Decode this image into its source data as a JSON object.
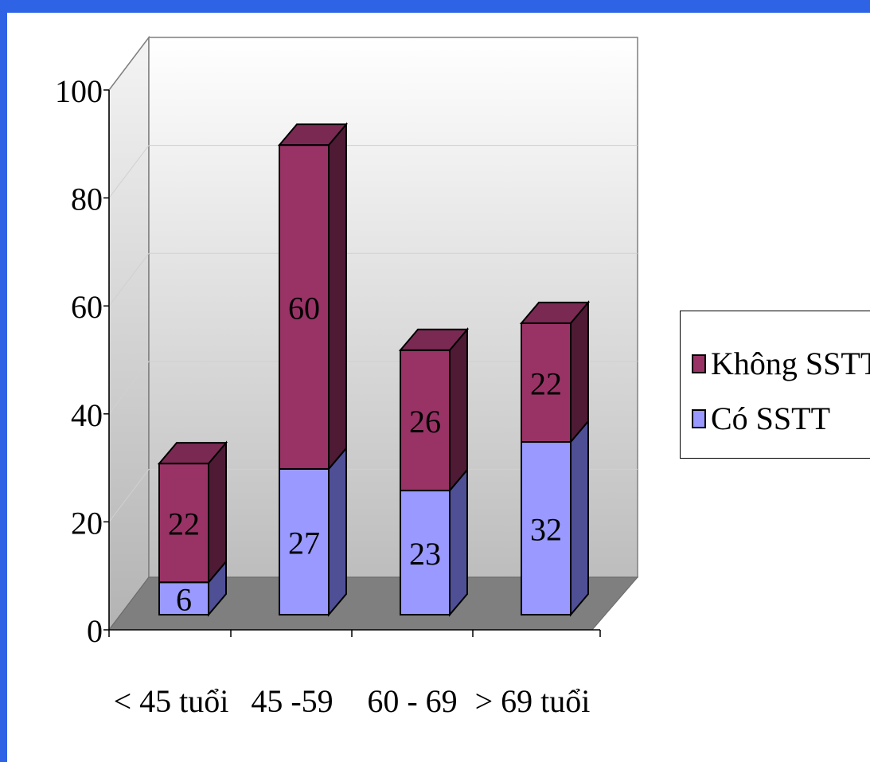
{
  "chart_data": {
    "type": "bar",
    "stacked": true,
    "three_d": true,
    "categories": [
      "< 45 tuổi",
      "45 -59",
      "60 - 69",
      "> 69 tuổi"
    ],
    "series": [
      {
        "name": "Có SSTT",
        "values": [
          6,
          27,
          23,
          32
        ],
        "color": "#9999ff",
        "side_color": "#4f4f96"
      },
      {
        "name": "Không SSTT",
        "values": [
          22,
          60,
          26,
          22
        ],
        "color": "#993366",
        "side_color": "#4e1a34",
        "top_color": "#7a2a52"
      }
    ],
    "ylim": [
      0,
      100
    ],
    "yticks": [
      "0",
      "20",
      "40",
      "60",
      "80",
      "100"
    ],
    "grid": true,
    "legend": "right",
    "legend_order": [
      "Không SSTT",
      "Có SSTT"
    ],
    "floor_color": "#7f7f7f",
    "background_color": "#2f63e6"
  }
}
